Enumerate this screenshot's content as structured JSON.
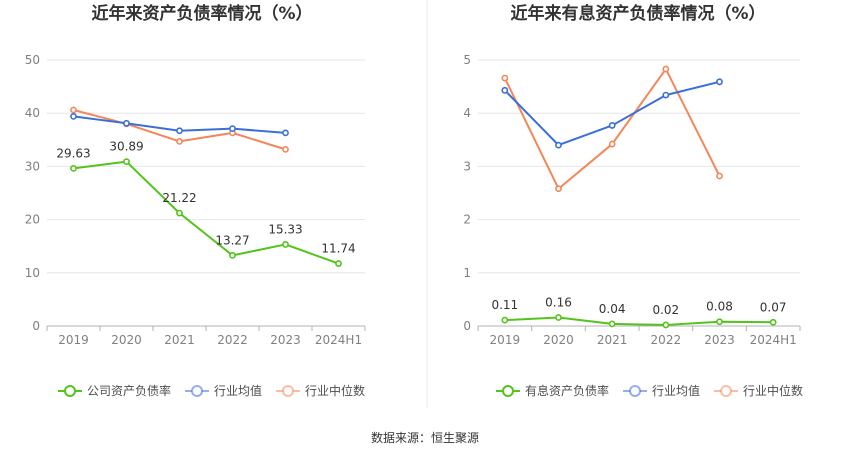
{
  "source": "数据来源：恒生聚源",
  "chart_data": [
    {
      "type": "line",
      "title": "近年来资产负债率情况（%）",
      "categories": [
        "2019",
        "2020",
        "2021",
        "2022",
        "2023",
        "2024H1"
      ],
      "ylim": [
        0,
        50
      ],
      "yticks": [
        0,
        10,
        20,
        30,
        40,
        50
      ],
      "series": [
        {
          "name": "公司资产负债率",
          "color": "#52c41a",
          "values": [
            29.63,
            30.89,
            21.22,
            13.27,
            15.33,
            11.74
          ],
          "labels": [
            "29.63",
            "30.89",
            "21.22",
            "13.27",
            "15.33",
            "11.74"
          ]
        },
        {
          "name": "行业均值",
          "color": "#3a6fd8",
          "values": [
            39.4,
            38.1,
            36.7,
            37.1,
            36.3,
            null
          ]
        },
        {
          "name": "行业中位数",
          "color": "#f5865a",
          "values": [
            40.6,
            38.0,
            34.7,
            36.3,
            33.2,
            null
          ]
        }
      ]
    },
    {
      "type": "line",
      "title": "近年来有息资产负债率情况（%）",
      "categories": [
        "2019",
        "2020",
        "2021",
        "2022",
        "2023",
        "2024H1"
      ],
      "ylim": [
        0,
        5
      ],
      "yticks": [
        0,
        1,
        2,
        3,
        4,
        5
      ],
      "series": [
        {
          "name": "有息资产负债率",
          "color": "#52c41a",
          "values": [
            0.11,
            0.16,
            0.04,
            0.02,
            0.08,
            0.07
          ],
          "labels": [
            "0.11",
            "0.16",
            "0.04",
            "0.02",
            "0.08",
            "0.07"
          ]
        },
        {
          "name": "行业均值",
          "color": "#3a6fd8",
          "values": [
            4.43,
            3.4,
            3.77,
            4.34,
            4.59,
            null
          ]
        },
        {
          "name": "行业中位数",
          "color": "#f5865a",
          "values": [
            4.66,
            2.58,
            3.42,
            4.83,
            2.82,
            null
          ]
        }
      ]
    }
  ]
}
